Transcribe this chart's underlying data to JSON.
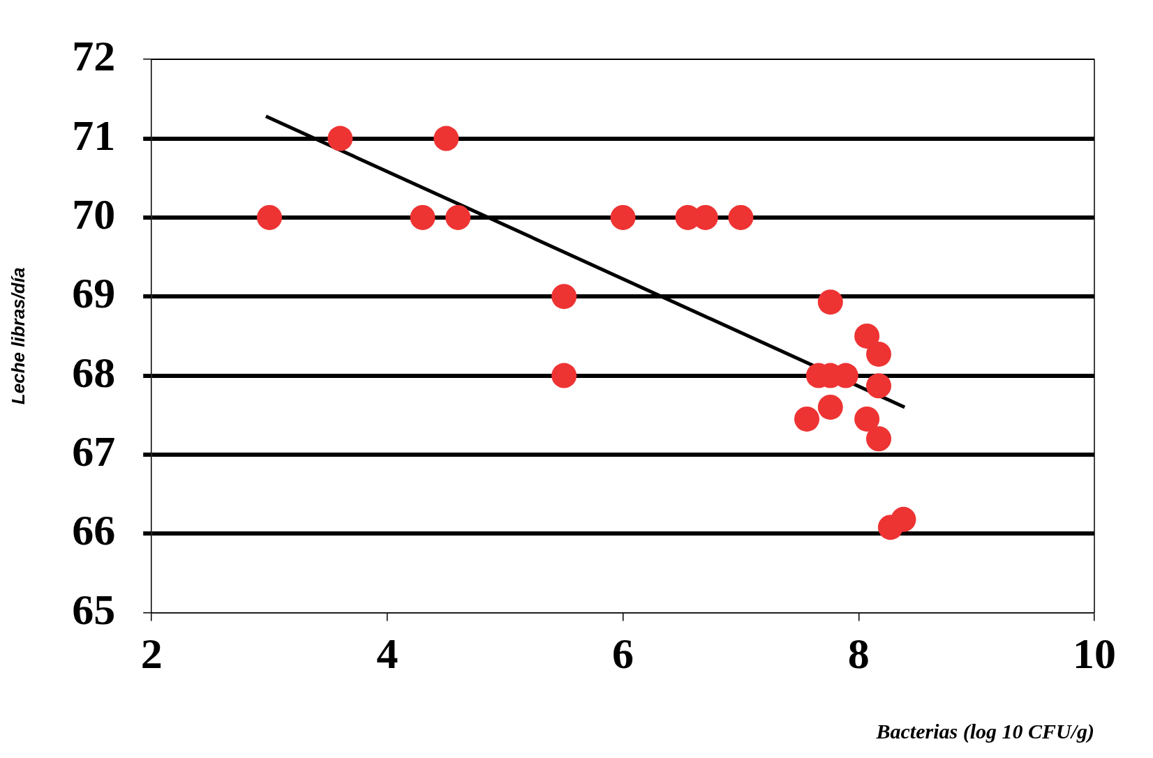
{
  "chart_data": {
    "type": "scatter",
    "xlabel": "Bacterias (log 10 CFU/g)",
    "ylabel": "Leche libras/día",
    "xlim": [
      2,
      10
    ],
    "xticks": [
      2,
      4,
      6,
      8,
      10
    ],
    "ylim": [
      65,
      72
    ],
    "yticks": [
      65,
      66,
      67,
      68,
      69,
      70,
      71,
      72
    ],
    "grid": "y",
    "legend": false,
    "marker": "circle",
    "series": [
      {
        "color": "#ee3333",
        "x": [
          3.0,
          3.6,
          4.5,
          4.3,
          4.6,
          6.0,
          6.55,
          6.7,
          7.0,
          5.5,
          5.5,
          7.76,
          8.07,
          8.17,
          7.66,
          7.76,
          7.89,
          8.17,
          7.76,
          7.56,
          8.07,
          8.17,
          8.27,
          8.38
        ],
        "values": [
          70,
          71,
          71,
          70,
          70,
          70,
          70,
          70,
          70,
          69,
          68,
          68.93,
          68.5,
          68.27,
          68,
          68,
          68,
          67.87,
          67.6,
          67.45,
          67.45,
          67.2,
          66.08,
          66.18
        ]
      },
      {
        "type": "line",
        "color": "#000000",
        "marker": "none",
        "x": [
          2.97,
          8.39
        ],
        "values": [
          71.28,
          67.6
        ]
      }
    ]
  }
}
